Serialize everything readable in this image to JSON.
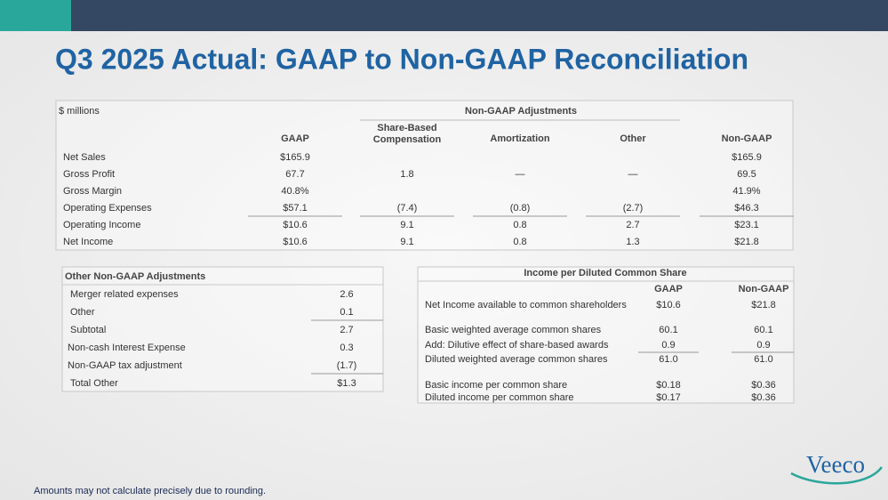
{
  "header": {
    "title": "Q3 2025 Actual: GAAP to Non-GAAP Reconciliation"
  },
  "main_table": {
    "unit": "$ millions",
    "group_header": "Non-GAAP Adjustments",
    "columns": [
      "GAAP",
      "Share-Based Compensation",
      "Amortization",
      "Other",
      "Non-GAAP"
    ],
    "rows": [
      [
        "Net Sales",
        "$165.9",
        null,
        null,
        null,
        "$165.9"
      ],
      [
        "Gross Profit",
        "67.7",
        "1.8",
        "—",
        "—",
        "69.5"
      ],
      [
        "Gross Margin",
        "40.8%",
        null,
        null,
        null,
        "41.9%"
      ],
      [
        "Operating Expenses",
        "$57.1",
        "(7.4)",
        "(0.8)",
        "(2.7)",
        "$46.3"
      ],
      [
        "Operating Income",
        "$10.6",
        "9.1",
        "0.8",
        "2.7",
        "$23.1"
      ],
      [
        "Net Income",
        "$10.6",
        "9.1",
        "0.8",
        "1.3",
        "$21.8"
      ]
    ]
  },
  "other_table": {
    "title": "Other Non-GAAP Adjustments",
    "rows": [
      [
        "Merger related expenses",
        "2.6"
      ],
      [
        "Other",
        "0.1"
      ],
      [
        "Subtotal",
        "2.7"
      ],
      [
        "Non-cash Interest Expense",
        "0.3"
      ],
      [
        "Non-GAAP tax adjustment",
        "(1.7)"
      ],
      [
        "Total Other",
        "$1.3"
      ]
    ]
  },
  "eps_table": {
    "title": "Income per Diluted Common Share",
    "columns": [
      "GAAP",
      "Non-GAAP"
    ],
    "rows": [
      [
        "Net Income available to common shareholders",
        "$10.6",
        "$21.8"
      ],
      [
        "Basic weighted average common shares",
        "60.1",
        "60.1"
      ],
      [
        "Add: Dilutive effect of share-based awards",
        "0.9",
        "0.9"
      ],
      [
        "Diluted weighted average common shares",
        "61.0",
        "61.0"
      ],
      [
        "Basic income per common share",
        "$0.18",
        "$0.36"
      ],
      [
        "Diluted income per common share",
        "$0.17",
        "$0.36"
      ]
    ]
  },
  "footnote": "Amounts may not calculate precisely due to rounding.",
  "logo": "Veeco"
}
